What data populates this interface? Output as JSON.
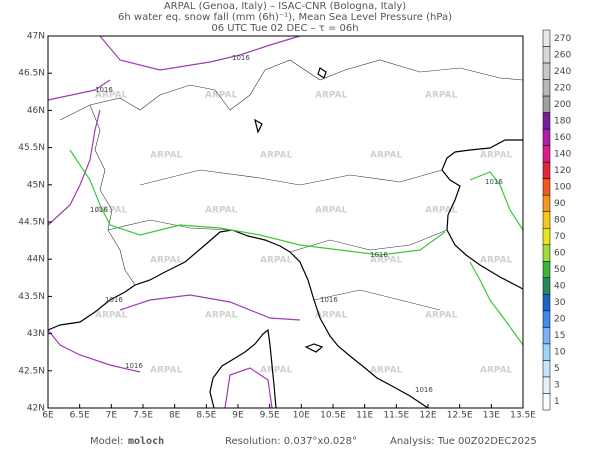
{
  "header": {
    "line1": "ARPAL (Genoa, Italy)  –  ISAC-CNR (Bologna, Italy)",
    "line2": "6h water eq. snow fall (mm (6h)⁻¹), Mean Sea Level Pressure (hPa)",
    "line3": "06 UTC Tue 02 DEC  –  τ = 06h"
  },
  "axes": {
    "lat_labels": [
      "47N",
      "46.5N",
      "46N",
      "45.5N",
      "45N",
      "44.5N",
      "44N",
      "43.5N",
      "43N",
      "42.5N",
      "42N"
    ],
    "lon_labels": [
      "6E",
      "6.5E",
      "7E",
      "7.5E",
      "8E",
      "8.5E",
      "9E",
      "9.5E",
      "10E",
      "10.5E",
      "11E",
      "11.5E",
      "12E",
      "12.5E",
      "13E",
      "13.5E"
    ]
  },
  "colorbar": [
    {
      "label": "270",
      "color": "#e8e8e8"
    },
    {
      "label": "260",
      "color": "#d8d8d8"
    },
    {
      "label": "240",
      "color": "#c8c8c8"
    },
    {
      "label": "220",
      "color": "#b8b8b8"
    },
    {
      "label": "200",
      "color": "#a0a0a0"
    },
    {
      "label": "180",
      "color": "#7a1e9c"
    },
    {
      "label": "160",
      "color": "#b01eb0"
    },
    {
      "label": "140",
      "color": "#d81e8c"
    },
    {
      "label": "120",
      "color": "#e0283c"
    },
    {
      "label": "100",
      "color": "#f05a1e"
    },
    {
      "label": "90",
      "color": "#f5961e"
    },
    {
      "label": "80",
      "color": "#f5c81e"
    },
    {
      "label": "70",
      "color": "#e6e61e"
    },
    {
      "label": "60",
      "color": "#a0dc3c"
    },
    {
      "label": "50",
      "color": "#3cb43c"
    },
    {
      "label": "40",
      "color": "#1e8c5a"
    },
    {
      "label": "30",
      "color": "#1e64c8"
    },
    {
      "label": "20",
      "color": "#3c8cf0"
    },
    {
      "label": "15",
      "color": "#78b4f5"
    },
    {
      "label": "10",
      "color": "#a0d2fa"
    },
    {
      "label": "5",
      "color": "#c8e6fa"
    },
    {
      "label": "3",
      "color": "#e6f0fa"
    },
    {
      "label": "1",
      "color": "#ffffff"
    }
  ],
  "watermark": "ARPAL",
  "contour_label": "1016",
  "footer": {
    "model_label": "Model:",
    "model": "moloch",
    "resolution": "Resolution: 0.037°x0.028°",
    "analysis": "Analysis: Tue 00Z02DEC2025"
  }
}
